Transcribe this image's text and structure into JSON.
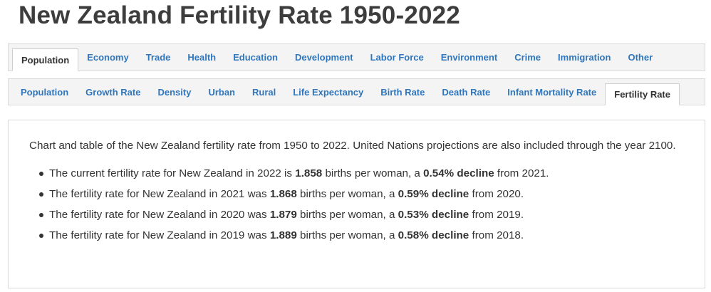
{
  "page": {
    "title": "New Zealand Fertility Rate 1950-2022"
  },
  "primary_tabs": [
    {
      "label": "Population",
      "active": true
    },
    {
      "label": "Economy",
      "active": false
    },
    {
      "label": "Trade",
      "active": false
    },
    {
      "label": "Health",
      "active": false
    },
    {
      "label": "Education",
      "active": false
    },
    {
      "label": "Development",
      "active": false
    },
    {
      "label": "Labor Force",
      "active": false
    },
    {
      "label": "Environment",
      "active": false
    },
    {
      "label": "Crime",
      "active": false
    },
    {
      "label": "Immigration",
      "active": false
    },
    {
      "label": "Other",
      "active": false
    }
  ],
  "secondary_tabs": [
    {
      "label": "Population",
      "active": false
    },
    {
      "label": "Growth Rate",
      "active": false
    },
    {
      "label": "Density",
      "active": false
    },
    {
      "label": "Urban",
      "active": false
    },
    {
      "label": "Rural",
      "active": false
    },
    {
      "label": "Life Expectancy",
      "active": false
    },
    {
      "label": "Birth Rate",
      "active": false
    },
    {
      "label": "Death Rate",
      "active": false
    },
    {
      "label": "Infant Mortality Rate",
      "active": false
    },
    {
      "label": "Fertility Rate",
      "active": true
    }
  ],
  "content": {
    "intro": "Chart and table of the New Zealand fertility rate from 1950 to 2022. United Nations projections are also included through the year 2100.",
    "facts": [
      {
        "pre": "The current fertility rate for New Zealand in 2022 is ",
        "rate": "1.858",
        "mid": " births per woman, a ",
        "change": "0.54% decline",
        "post": " from 2021."
      },
      {
        "pre": "The fertility rate for New Zealand in 2021 was ",
        "rate": "1.868",
        "mid": " births per woman, a ",
        "change": "0.59% decline",
        "post": " from 2020."
      },
      {
        "pre": "The fertility rate for New Zealand in 2020 was ",
        "rate": "1.879",
        "mid": " births per woman, a ",
        "change": "0.53% decline",
        "post": " from 2019."
      },
      {
        "pre": "The fertility rate for New Zealand in 2019 was ",
        "rate": "1.889",
        "mid": " births per woman, a ",
        "change": "0.58% decline",
        "post": " from 2018."
      }
    ]
  }
}
